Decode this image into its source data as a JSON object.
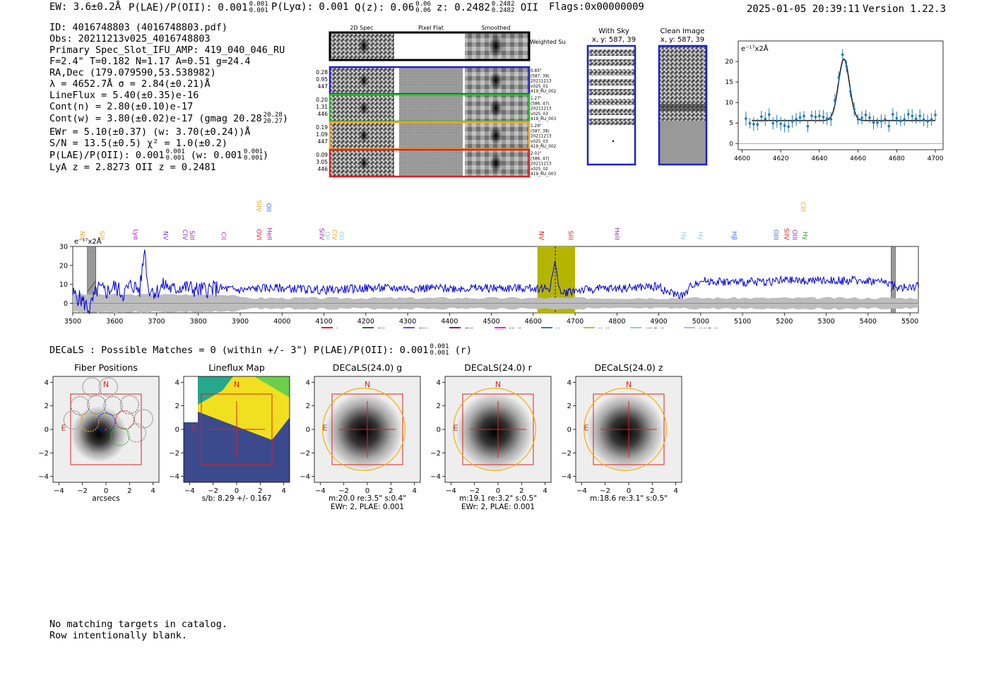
{
  "header": {
    "ew": "EW: 3.6±0.2Å",
    "plae": "P(LAE)/P(OII): 0.001",
    "plae_hi": "0.001",
    "plae_lo": "0.001",
    "plya": "P(Lyα): 0.001",
    "qz": "Q(z): 0.06",
    "qz_hi": "0.06",
    "qz_lo": "0.06",
    "z": "z: 0.2482",
    "z_hi": "0.2482",
    "z_lo": "0.2482",
    "zline": "OII",
    "flags": "Flags:0x00000009",
    "datetime": "2025-01-05 20:39:11",
    "version": "Version 1.22.3"
  },
  "info": {
    "id": "ID: 4016748803 (4016748803.pdf)",
    "obs": "Obs: 20211213v025_4016748803",
    "primary": "Primary Spec_Slot_IFU_AMP: 419_040_046_RU",
    "params": "F=2.4\"  T=0.182  N=1.17  A=0.51  g=24.4",
    "radec": "RA,Dec (179.079590,53.538982)",
    "lambda": "λ = 4652.7Å   σ = 2.84(±0.21)Å",
    "lineflux": "LineFlux = 5.40(±0.35)e-16",
    "contn": "Cont(n) = 2.80(±0.10)e-17",
    "contw": "Cont(w) = 3.80(±0.02)e-17 (gmag 20.28",
    "contw_hi": "20.28",
    "contw_lo": "20.27",
    "contw_end": ")",
    "ewr": "EWr = 5.10(±0.37) (w: 3.70(±0.24))Å",
    "sn": "S/N = 13.5(±0.5)  χ² = 1.0(±0.2)",
    "plae": "P(LAE)/P(OII): 0.001",
    "plae_hi": "0.001",
    "plae_lo": "0.001",
    "plae_w": "(w: 0.001",
    "plae_w_hi": "0.001",
    "plae_w_lo": "0.001",
    "plae_end": ")",
    "lyaz": "LyA z = 2.8273   OII z = 0.2481"
  },
  "cutouts": {
    "titles": [
      "2D Spec",
      "Pixel Flat",
      "Smoothed"
    ],
    "weighted": "Weighted Sum",
    "rows": [
      {
        "left": [
          "0.28",
          "0.95",
          "447"
        ],
        "right": [
          "0.85\"",
          "(587, 39)",
          "20211213",
          "v025_01",
          "419_RU_002"
        ],
        "color": "#1f1fd0"
      },
      {
        "left": [
          "0.20",
          "1.31",
          "446"
        ],
        "right": [
          "1.27\"",
          "(586, 47)",
          "20211213",
          "v025_03",
          "419_RU_003"
        ],
        "color": "#22bb22"
      },
      {
        "left": [
          "0.19",
          "1.09",
          "447"
        ],
        "right": [
          "1.29\"",
          "(587, 38)",
          "20211213",
          "v025_03",
          "419_RU_002"
        ],
        "color": "#f5a623"
      },
      {
        "left": [
          "0.09",
          "3.05",
          "446"
        ],
        "right": [
          "2.01\"",
          "(586, 47)",
          "20211213",
          "v025_02",
          "419_RU_003"
        ],
        "color": "#e02020"
      }
    ],
    "with_sky_title": "With Sky",
    "with_sky_xy": "x, y: 587, 39",
    "clean_title": "Clean Image",
    "clean_xy": "x, y: 587, 39"
  },
  "zoom_chart": {
    "unit": "e⁻¹⁷x2Å",
    "x_ticks": [
      4600,
      4620,
      4640,
      4660,
      4680,
      4700
    ],
    "y_ticks": [
      0,
      5,
      10,
      15,
      20
    ],
    "xlim": [
      4598,
      4704
    ],
    "ylim": [
      -1.5,
      25
    ]
  },
  "chart_data": {
    "type": "line",
    "title": "",
    "xlabel": "",
    "ylabel": "e⁻¹⁷x2Å",
    "xlim": [
      3500,
      5520
    ],
    "ylim": [
      -5,
      30
    ],
    "x_ticks": [
      3500,
      3600,
      3700,
      3800,
      3900,
      4000,
      4100,
      4200,
      4300,
      4400,
      4500,
      4600,
      4700,
      4800,
      4900,
      5000,
      5100,
      5200,
      5300,
      5400,
      5500
    ],
    "y_ticks": [
      0,
      10,
      20,
      30
    ],
    "highlight_region": [
      4610,
      4700
    ],
    "line_marker": 4652.7,
    "masked_regions": [
      [
        3535,
        3555
      ],
      [
        5455,
        5465
      ]
    ],
    "spectrum_shape": [
      [
        3500,
        5
      ],
      [
        3520,
        2
      ],
      [
        3540,
        -3
      ],
      [
        3560,
        8
      ],
      [
        3580,
        6
      ],
      [
        3600,
        9
      ],
      [
        3620,
        5
      ],
      [
        3640,
        10
      ],
      [
        3660,
        7
      ],
      [
        3672,
        29
      ],
      [
        3680,
        8
      ],
      [
        3700,
        6
      ],
      [
        3720,
        10
      ],
      [
        3740,
        7
      ],
      [
        3760,
        9
      ],
      [
        3800,
        7
      ],
      [
        3850,
        8
      ],
      [
        3900,
        7
      ],
      [
        3950,
        8
      ],
      [
        4000,
        8
      ],
      [
        4100,
        7
      ],
      [
        4200,
        8
      ],
      [
        4300,
        8
      ],
      [
        4400,
        8
      ],
      [
        4500,
        8
      ],
      [
        4600,
        8
      ],
      [
        4640,
        8
      ],
      [
        4652,
        22
      ],
      [
        4665,
        5
      ],
      [
        4700,
        7
      ],
      [
        4800,
        8
      ],
      [
        4900,
        9
      ],
      [
        4920,
        6
      ],
      [
        4960,
        4
      ],
      [
        4980,
        10
      ],
      [
        5000,
        12
      ],
      [
        5100,
        11
      ],
      [
        5200,
        12
      ],
      [
        5300,
        12
      ],
      [
        5400,
        12
      ],
      [
        5450,
        11
      ],
      [
        5470,
        8
      ],
      [
        5520,
        9
      ]
    ],
    "line_labels": [
      {
        "name": "NV",
        "x": 3523,
        "color": "#f5a623",
        "tier": 2
      },
      {
        "name": "SiII",
        "x": 3570,
        "color": "#f5a623",
        "tier": 2
      },
      {
        "name": "Lyα",
        "x": 3651,
        "color": "#9c27b0",
        "tier": 2
      },
      {
        "name": "NV",
        "x": 3722,
        "color": "#7d3cd8",
        "tier": 2
      },
      {
        "name": "CIV",
        "x": 3768,
        "color": "#7d3cd8",
        "tier": 2
      },
      {
        "name": "SiII",
        "x": 3785,
        "color": "#9c27b0",
        "tier": 2
      },
      {
        "name": "CII",
        "x": 3860,
        "color": "#e91eb8",
        "tier": 2
      },
      {
        "name": "OVI",
        "x": 3945,
        "color": "#e02020",
        "tier": 2
      },
      {
        "name": "SiIV",
        "x": 3945,
        "color": "#f5a623",
        "tier": 1
      },
      {
        "name": "OII",
        "x": 3968,
        "color": "#3b6fe0",
        "tier": 1
      },
      {
        "name": "HeII",
        "x": 3970,
        "color": "#9c27b0",
        "tier": 2
      },
      {
        "name": "SiIV",
        "x": 4095,
        "color": "#9c27b0",
        "tier": 2
      },
      {
        "name": "OII",
        "x": 4108,
        "color": "#87ceeb",
        "tier": 2
      },
      {
        "name": "CIV",
        "x": 4125,
        "color": "#f5a623",
        "tier": 2
      },
      {
        "name": "OII",
        "x": 4142,
        "color": "#87ceeb",
        "tier": 2
      },
      {
        "name": "NV",
        "x": 4620,
        "color": "#e02020",
        "tier": 2
      },
      {
        "name": "SiII",
        "x": 4690,
        "color": "#e02020",
        "tier": 2
      },
      {
        "name": "HeII",
        "x": 4800,
        "color": "#9c27b0",
        "tier": 2
      },
      {
        "name": "Hγ",
        "x": 4960,
        "color": "#87ceeb",
        "tier": 2
      },
      {
        "name": "Hγ",
        "x": 5000,
        "color": "#87ceeb",
        "tier": 2
      },
      {
        "name": "Hβ",
        "x": 5080,
        "color": "#3b6fe0",
        "tier": 2
      },
      {
        "name": "OIII",
        "x": 5180,
        "color": "#3b6fe0",
        "tier": 2
      },
      {
        "name": "SiIV",
        "x": 5205,
        "color": "#e02020",
        "tier": 2
      },
      {
        "name": "OIII",
        "x": 5225,
        "color": "#7d3cd8",
        "tier": 2
      },
      {
        "name": "CIII",
        "x": 5245,
        "color": "#f5a623",
        "tier": 1
      },
      {
        "name": "Hγ",
        "x": 5250,
        "color": "#22aa22",
        "tier": 2
      }
    ],
    "legend": [
      {
        "name": "Lyα",
        "color": "#e02020"
      },
      {
        "name": "OII",
        "color": "#1a7a1a"
      },
      {
        "name": "CIV",
        "color": "#7d3cd8"
      },
      {
        "name": "CIII",
        "color": "#8b008b"
      },
      {
        "name": "MgII",
        "color": "#ff00ff"
      },
      {
        "name": "Hγ",
        "color": "#3b6fe0"
      },
      {
        "name": "HeII",
        "color": "#f5a623"
      },
      {
        "name": "(K)CaII",
        "color": "#87ceeb"
      },
      {
        "name": "(H)CaII",
        "color": "#87ceeb"
      }
    ]
  },
  "decals": {
    "summary": "DECaLS : Possible Matches = 0 (within +/- 3\")  P(LAE)/P(OII): 0.001",
    "summary_hi": "0.001",
    "summary_lo": "0.001",
    "summary_band": "(r)",
    "panels": [
      {
        "title": "Fiber Positions",
        "caption1": "arcsecs",
        "caption2": "",
        "type": "fiber"
      },
      {
        "title": "Lineflux Map",
        "caption1": "s/b: 8.29 +/- 0.167",
        "caption2": "",
        "type": "lineflux"
      },
      {
        "title": "DECaLS(24.0) g",
        "caption1": "m:20.0  re:3.5\"  s:0.4\"",
        "caption2": "EWr: 2, PLAE: 0.001",
        "type": "image"
      },
      {
        "title": "DECaLS(24.0) r",
        "caption1": "m:19.1  re:3.2\"  s:0.5\"",
        "caption2": "EWr: 2, PLAE: 0.001",
        "type": "image"
      },
      {
        "title": "DECaLS(24.0) z",
        "caption1": "m:18.6  re:3.1\"  s:0.5\"",
        "caption2": "",
        "type": "image"
      }
    ],
    "tick_labels": [
      "−4",
      "−2",
      "0",
      "2",
      "4"
    ],
    "n_label": "N",
    "e_label": "E"
  },
  "footer": {
    "line1": "No matching targets in catalog.",
    "line2": "Row intentionally blank."
  }
}
